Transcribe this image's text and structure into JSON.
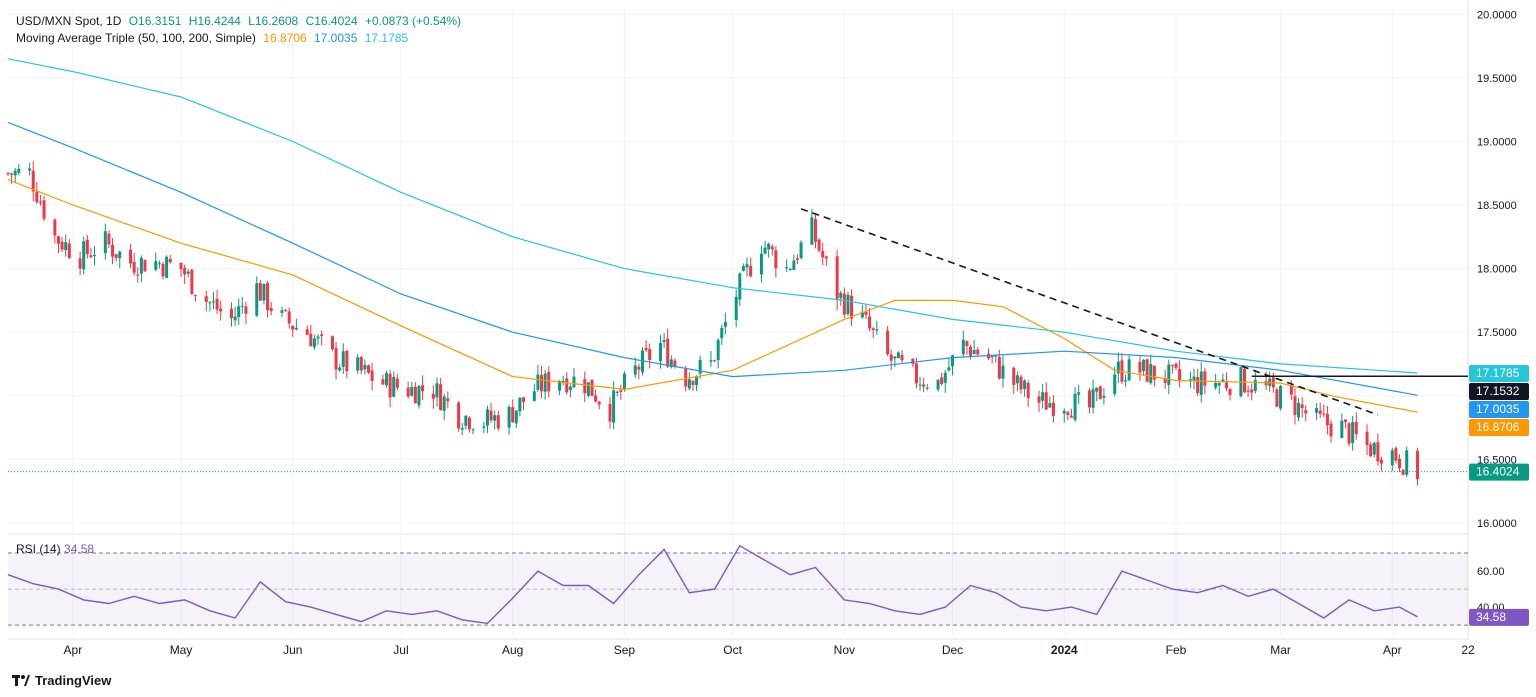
{
  "header": {
    "symbol": "USD/MXN Spot, 1D",
    "open": "O16.3151",
    "high": "H16.4244",
    "low": "L16.2608",
    "close": "C16.4024",
    "change": "+0.0873 (+0.54%)",
    "ma_title": "Moving Average Triple (50, 100, 200, Simple)",
    "ma50": "16.8706",
    "ma100": "17.0035",
    "ma200": "17.1785"
  },
  "rsi_legend": {
    "title": "RSI (14)",
    "value": "34.58"
  },
  "branding": {
    "name": "TradingView"
  },
  "colors": {
    "up": "#089981",
    "down": "#f23645",
    "ma50": "#ff9800",
    "ma100": "#2196f3",
    "ma200": "#26c6da",
    "rsi": "#7e57c2",
    "text": "#131722",
    "muted": "#787b86"
  },
  "chart_data": [
    {
      "type": "candlestick",
      "title": "USD/MXN Spot, 1D",
      "x_range": [
        "2023-03-14",
        "2024-04-22"
      ],
      "ylim": [
        15.92,
        20.05
      ],
      "y_ticks": [
        16.0,
        16.5,
        17.0,
        17.5,
        18.0,
        18.5,
        19.0,
        19.5,
        20.0
      ],
      "x_tick_labels": [
        {
          "date": "2023-04-01",
          "label": "Apr"
        },
        {
          "date": "2023-05-01",
          "label": "May"
        },
        {
          "date": "2023-06-01",
          "label": "Jun"
        },
        {
          "date": "2023-07-01",
          "label": "Jul"
        },
        {
          "date": "2023-08-01",
          "label": "Aug"
        },
        {
          "date": "2023-09-01",
          "label": "Sep"
        },
        {
          "date": "2023-10-01",
          "label": "Oct"
        },
        {
          "date": "2023-11-01",
          "label": "Nov"
        },
        {
          "date": "2023-12-01",
          "label": "Dec"
        },
        {
          "date": "2024-01-01",
          "label": "2024"
        },
        {
          "date": "2024-02-01",
          "label": "Feb"
        },
        {
          "date": "2024-03-01",
          "label": "Mar"
        },
        {
          "date": "2024-04-01",
          "label": "Apr"
        },
        {
          "date": "2024-04-22",
          "label": "22"
        }
      ],
      "close_path": [
        [
          "2023-03-14",
          18.75
        ],
        [
          "2023-03-20",
          18.75
        ],
        [
          "2023-03-27",
          18.25
        ],
        [
          "2023-04-03",
          18.1
        ],
        [
          "2023-04-10",
          18.2
        ],
        [
          "2023-04-17",
          18.05
        ],
        [
          "2023-04-24",
          18.05
        ],
        [
          "2023-05-01",
          18.0
        ],
        [
          "2023-05-08",
          17.75
        ],
        [
          "2023-05-15",
          17.6
        ],
        [
          "2023-05-22",
          17.85
        ],
        [
          "2023-05-29",
          17.6
        ],
        [
          "2023-06-05",
          17.5
        ],
        [
          "2023-06-12",
          17.3
        ],
        [
          "2023-06-19",
          17.2
        ],
        [
          "2023-06-26",
          17.1
        ],
        [
          "2023-07-03",
          17.05
        ],
        [
          "2023-07-10",
          17.05
        ],
        [
          "2023-07-17",
          16.85
        ],
        [
          "2023-07-24",
          16.8
        ],
        [
          "2023-07-31",
          16.85
        ],
        [
          "2023-08-07",
          17.05
        ],
        [
          "2023-08-14",
          17.15
        ],
        [
          "2023-08-21",
          17.1
        ],
        [
          "2023-08-28",
          16.9
        ],
        [
          "2023-09-04",
          17.2
        ],
        [
          "2023-09-11",
          17.4
        ],
        [
          "2023-09-18",
          17.15
        ],
        [
          "2023-09-25",
          17.25
        ],
        [
          "2023-10-02",
          17.8
        ],
        [
          "2023-10-09",
          18.2
        ],
        [
          "2023-10-16",
          18.0
        ],
        [
          "2023-10-23",
          18.3
        ],
        [
          "2023-10-30",
          17.8
        ],
        [
          "2023-11-06",
          17.6
        ],
        [
          "2023-11-13",
          17.3
        ],
        [
          "2023-11-20",
          17.15
        ],
        [
          "2023-11-27",
          17.1
        ],
        [
          "2023-12-04",
          17.4
        ],
        [
          "2023-12-11",
          17.3
        ],
        [
          "2023-12-18",
          17.1
        ],
        [
          "2023-12-25",
          16.95
        ],
        [
          "2024-01-01",
          16.95
        ],
        [
          "2024-01-08",
          16.9
        ],
        [
          "2024-01-15",
          17.2
        ],
        [
          "2024-01-22",
          17.2
        ],
        [
          "2024-01-29",
          17.15
        ],
        [
          "2024-02-05",
          17.1
        ],
        [
          "2024-02-12",
          17.1
        ],
        [
          "2024-02-19",
          17.12
        ],
        [
          "2024-02-26",
          17.05
        ],
        [
          "2024-03-04",
          16.95
        ],
        [
          "2024-03-11",
          16.8
        ],
        [
          "2024-03-18",
          16.75
        ],
        [
          "2024-03-25",
          16.6
        ],
        [
          "2024-04-01",
          16.55
        ],
        [
          "2024-04-08",
          16.4
        ]
      ],
      "series": [
        {
          "name": "MA 50",
          "color": "#ff9800",
          "points": [
            [
              "2023-03-14",
              18.7
            ],
            [
              "2023-04-01",
              18.5
            ],
            [
              "2023-05-01",
              18.2
            ],
            [
              "2023-06-01",
              17.95
            ],
            [
              "2023-07-01",
              17.55
            ],
            [
              "2023-08-01",
              17.15
            ],
            [
              "2023-09-01",
              17.05
            ],
            [
              "2023-10-01",
              17.2
            ],
            [
              "2023-11-01",
              17.6
            ],
            [
              "2023-11-15",
              17.75
            ],
            [
              "2023-12-01",
              17.75
            ],
            [
              "2023-12-15",
              17.7
            ],
            [
              "2024-01-01",
              17.45
            ],
            [
              "2024-01-15",
              17.2
            ],
            [
              "2024-02-01",
              17.12
            ],
            [
              "2024-03-01",
              17.1
            ],
            [
              "2024-03-15",
              17.0
            ],
            [
              "2024-04-08",
              16.8706
            ]
          ]
        },
        {
          "name": "MA 100",
          "color": "#2196f3",
          "points": [
            [
              "2023-03-14",
              19.15
            ],
            [
              "2023-04-01",
              18.95
            ],
            [
              "2023-05-01",
              18.6
            ],
            [
              "2023-06-01",
              18.2
            ],
            [
              "2023-07-01",
              17.8
            ],
            [
              "2023-08-01",
              17.5
            ],
            [
              "2023-09-01",
              17.3
            ],
            [
              "2023-10-01",
              17.15
            ],
            [
              "2023-11-01",
              17.2
            ],
            [
              "2023-12-01",
              17.3
            ],
            [
              "2024-01-01",
              17.35
            ],
            [
              "2024-02-01",
              17.3
            ],
            [
              "2024-03-01",
              17.2
            ],
            [
              "2024-04-08",
              17.0035
            ]
          ]
        },
        {
          "name": "MA 200",
          "color": "#26c6da",
          "points": [
            [
              "2023-03-14",
              19.65
            ],
            [
              "2023-04-01",
              19.55
            ],
            [
              "2023-05-01",
              19.35
            ],
            [
              "2023-06-01",
              19.0
            ],
            [
              "2023-07-01",
              18.6
            ],
            [
              "2023-08-01",
              18.25
            ],
            [
              "2023-09-01",
              18.0
            ],
            [
              "2023-10-01",
              17.85
            ],
            [
              "2023-11-01",
              17.75
            ],
            [
              "2023-12-01",
              17.6
            ],
            [
              "2024-01-01",
              17.5
            ],
            [
              "2024-02-01",
              17.35
            ],
            [
              "2024-03-01",
              17.25
            ],
            [
              "2024-04-08",
              17.1785
            ]
          ]
        }
      ],
      "annotations": {
        "trendline": [
          [
            "2023-10-20",
            18.47
          ],
          [
            "2024-03-28",
            16.85
          ]
        ],
        "horizontal_ray": {
          "from": "2024-02-22",
          "value": 17.1532
        },
        "last_price_line": 16.4024
      },
      "price_labels": [
        {
          "text": "17.1785",
          "color": "#26c6da",
          "value": 17.1785
        },
        {
          "text": "17.1532",
          "color": "#131722",
          "value": 17.1532
        },
        {
          "text": "17.0035",
          "color": "#2196f3",
          "value": 17.0035
        },
        {
          "text": "16.8706",
          "color": "#ff9800",
          "value": 16.8706
        },
        {
          "text": "16.4024",
          "color": "#089981",
          "value": 16.4024
        }
      ]
    },
    {
      "type": "line",
      "title": "RSI (14)",
      "ylim": [
        24,
        80
      ],
      "y_ticks": [
        40.0,
        60.0
      ],
      "bands": [
        30,
        70
      ],
      "points": [
        [
          "2023-03-14",
          58
        ],
        [
          "2023-03-21",
          53
        ],
        [
          "2023-03-28",
          50
        ],
        [
          "2023-04-04",
          44
        ],
        [
          "2023-04-11",
          42
        ],
        [
          "2023-04-18",
          46
        ],
        [
          "2023-04-25",
          42
        ],
        [
          "2023-05-02",
          44
        ],
        [
          "2023-05-09",
          38
        ],
        [
          "2023-05-16",
          34
        ],
        [
          "2023-05-23",
          54
        ],
        [
          "2023-05-30",
          43
        ],
        [
          "2023-06-06",
          40
        ],
        [
          "2023-06-13",
          36
        ],
        [
          "2023-06-20",
          32
        ],
        [
          "2023-06-27",
          38
        ],
        [
          "2023-07-04",
          36
        ],
        [
          "2023-07-11",
          38
        ],
        [
          "2023-07-18",
          33
        ],
        [
          "2023-07-25",
          31
        ],
        [
          "2023-08-01",
          45
        ],
        [
          "2023-08-08",
          60
        ],
        [
          "2023-08-15",
          52
        ],
        [
          "2023-08-22",
          52
        ],
        [
          "2023-08-29",
          42
        ],
        [
          "2023-09-05",
          58
        ],
        [
          "2023-09-12",
          72
        ],
        [
          "2023-09-19",
          48
        ],
        [
          "2023-09-26",
          50
        ],
        [
          "2023-10-03",
          74
        ],
        [
          "2023-10-10",
          66
        ],
        [
          "2023-10-17",
          58
        ],
        [
          "2023-10-24",
          62
        ],
        [
          "2023-11-01",
          44
        ],
        [
          "2023-11-08",
          42
        ],
        [
          "2023-11-15",
          38
        ],
        [
          "2023-11-22",
          36
        ],
        [
          "2023-11-29",
          40
        ],
        [
          "2023-12-06",
          52
        ],
        [
          "2023-12-13",
          48
        ],
        [
          "2023-12-20",
          40
        ],
        [
          "2023-12-27",
          38
        ],
        [
          "2024-01-03",
          40
        ],
        [
          "2024-01-10",
          36
        ],
        [
          "2024-01-17",
          60
        ],
        [
          "2024-01-24",
          55
        ],
        [
          "2024-01-31",
          50
        ],
        [
          "2024-02-07",
          48
        ],
        [
          "2024-02-14",
          52
        ],
        [
          "2024-02-21",
          46
        ],
        [
          "2024-02-28",
          50
        ],
        [
          "2024-03-06",
          42
        ],
        [
          "2024-03-13",
          34
        ],
        [
          "2024-03-20",
          44
        ],
        [
          "2024-03-27",
          38
        ],
        [
          "2024-04-03",
          40
        ],
        [
          "2024-04-08",
          34.58
        ]
      ],
      "price_label": {
        "text": "34.58",
        "color": "#7e57c2",
        "value": 34.58
      }
    }
  ]
}
